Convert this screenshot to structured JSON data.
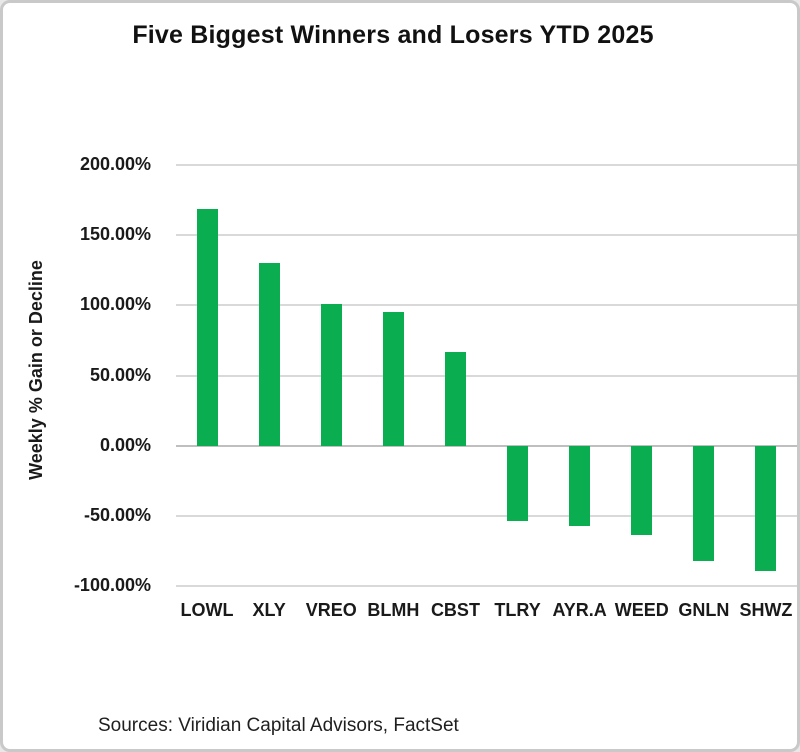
{
  "window": {
    "background": "#ffffff",
    "border_color": "#c9c9c9"
  },
  "chart_data": {
    "type": "bar",
    "title": "Five Biggest Winners and Losers YTD 2025",
    "ylabel": "Weekly % Gain or Decline",
    "xlabel": "",
    "categories": [
      "LOWL",
      "XLY",
      "VREO",
      "BLMH",
      "CBST",
      "TLRY",
      "AYR.A",
      "WEED",
      "GNLN",
      "SHWZ"
    ],
    "values": [
      169,
      130,
      101,
      95,
      67,
      -54,
      -57,
      -64,
      -82,
      -89
    ],
    "unit": "%",
    "ylim": [
      -100,
      200
    ],
    "ytick_step": 50,
    "ytick_labels": [
      "200.00%",
      "150.00%",
      "100.00%",
      "50.00%",
      "0.00%",
      "-50.00%",
      "-100.00%"
    ],
    "grid": true,
    "legend": false,
    "bar_color": "#0BAD51",
    "gridline_color": "#d9d9d9",
    "zero_line_color": "#bfbfbf",
    "source_note": "Sources: Viridian Capital Advisors, FactSet"
  }
}
